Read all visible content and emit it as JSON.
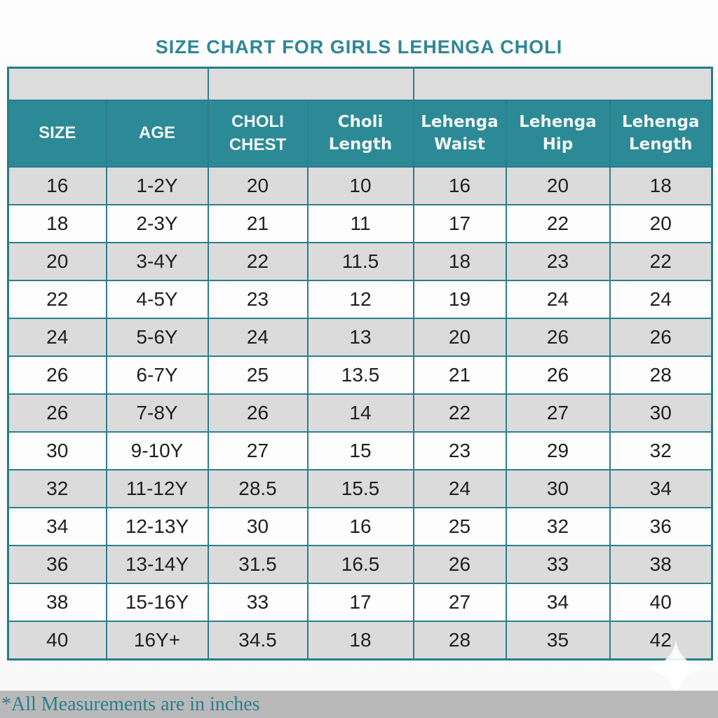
{
  "page": {
    "title": "SIZE CHART FOR GIRLS LEHENGA CHOLI",
    "footer_note": "*All Measurements are in inches"
  },
  "colors": {
    "title_teal": "#2e8796",
    "header_fill_teal": "#2b8a96",
    "border_teal": "#2a7f8e",
    "row_gray": "#dbdbdb",
    "row_white": "#fdfdfd",
    "footer_bar_gray": "#b9b9b9",
    "footer_text_teal": "#2a7f8e",
    "data_text": "#1f1f1f"
  },
  "chart_data": {
    "type": "table",
    "title": "SIZE CHART FOR GIRLS LEHENGA CHOLI",
    "columns": [
      "SIZE",
      "AGE",
      "CHOLI CHEST",
      "Choli Length",
      "Lehenga Waist",
      "Lehenga Hip",
      "Lehenga Length"
    ],
    "column_groups": [
      {
        "span": 2,
        "label": ""
      },
      {
        "span": 2,
        "label": ""
      },
      {
        "span": 3,
        "label": ""
      }
    ],
    "rows": [
      [
        "16",
        "1-2Y",
        "20",
        "10",
        "16",
        "20",
        "18"
      ],
      [
        "18",
        "2-3Y",
        "21",
        "11",
        "17",
        "22",
        "20"
      ],
      [
        "20",
        "3-4Y",
        "22",
        "11.5",
        "18",
        "23",
        "22"
      ],
      [
        "22",
        "4-5Y",
        "23",
        "12",
        "19",
        "24",
        "24"
      ],
      [
        "24",
        "5-6Y",
        "24",
        "13",
        "20",
        "26",
        "26"
      ],
      [
        "26",
        "6-7Y",
        "25",
        "13.5",
        "21",
        "26",
        "28"
      ],
      [
        "26",
        "7-8Y",
        "26",
        "14",
        "22",
        "27",
        "30"
      ],
      [
        "30",
        "9-10Y",
        "27",
        "15",
        "23",
        "29",
        "32"
      ],
      [
        "32",
        "11-12Y",
        "28.5",
        "15.5",
        "24",
        "30",
        "34"
      ],
      [
        "34",
        "12-13Y",
        "30",
        "16",
        "25",
        "32",
        "36"
      ],
      [
        "36",
        "13-14Y",
        "31.5",
        "16.5",
        "26",
        "33",
        "38"
      ],
      [
        "38",
        "15-16Y",
        "33",
        "17",
        "27",
        "34",
        "40"
      ],
      [
        "40",
        "16Y+",
        "34.5",
        "18",
        "28",
        "35",
        "42"
      ]
    ],
    "footnote": "*All Measurements are in inches",
    "units": "inches",
    "striping": "odd rows gray, even rows white"
  }
}
